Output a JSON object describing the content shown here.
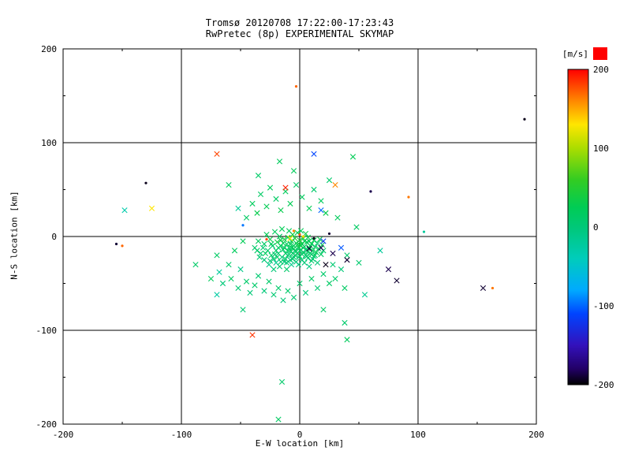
{
  "title": {
    "line1": "Tromsø 20120708 17:22:00-17:23:43",
    "line2": "RwPretec (8p) EXPERIMENTAL SKYMAP"
  },
  "axes": {
    "xlabel": "E-W location [km]",
    "ylabel": "N-S location [km]",
    "xlim": [
      -200,
      200
    ],
    "ylim": [
      -200,
      200
    ],
    "xticks": [
      -200,
      -100,
      0,
      100,
      200
    ],
    "yticks": [
      -200,
      -100,
      0,
      100,
      200
    ],
    "minor_tick_step": 50,
    "grid": true
  },
  "colorbar": {
    "label": "[m/s]",
    "ticks": [
      200,
      100,
      0,
      -100,
      -200
    ],
    "range": [
      -200,
      200
    ],
    "cap_color": "#ff0000",
    "stops": [
      [
        200,
        "#ff0000"
      ],
      [
        160,
        "#ff8800"
      ],
      [
        130,
        "#ffe600"
      ],
      [
        100,
        "#aadd00"
      ],
      [
        60,
        "#33cc22"
      ],
      [
        25,
        "#00cc55"
      ],
      [
        0,
        "#00c878"
      ],
      [
        -40,
        "#00ccbb"
      ],
      [
        -80,
        "#00aaff"
      ],
      [
        -110,
        "#0044ff"
      ],
      [
        -150,
        "#3311bb"
      ],
      [
        -180,
        "#220066"
      ],
      [
        -200,
        "#000000"
      ]
    ]
  },
  "chart_data": {
    "type": "scatter",
    "title": "Tromsø 20120708 17:22:00-17:23:43 — RwPretec (8p) EXPERIMENTAL SKYMAP",
    "xlabel": "E-W location [km]",
    "ylabel": "N-S location [km]",
    "xlim": [
      -200,
      200
    ],
    "ylim": [
      -200,
      200
    ],
    "color_label": "[m/s]",
    "color_range": [
      -200,
      200
    ],
    "legend_position": "right-colorbar",
    "marker_note": "points are [x_km, y_km, velocity_mps, optional 'd' for dot marker; default cross]",
    "points": [
      [
        -38,
        -12,
        10
      ],
      [
        -35,
        -5,
        20
      ],
      [
        -33,
        -18,
        5
      ],
      [
        -30,
        -8,
        15
      ],
      [
        -30,
        -25,
        0
      ],
      [
        -28,
        2,
        25
      ],
      [
        -27,
        -15,
        10
      ],
      [
        -26,
        -30,
        -10
      ],
      [
        -25,
        -3,
        30
      ],
      [
        -24,
        -20,
        15
      ],
      [
        -23,
        -10,
        5
      ],
      [
        -22,
        -35,
        0
      ],
      [
        -21,
        5,
        20
      ],
      [
        -20,
        -15,
        10
      ],
      [
        -20,
        -28,
        -15
      ],
      [
        -19,
        -6,
        35
      ],
      [
        -18,
        -18,
        10
      ],
      [
        -17,
        0,
        15
      ],
      [
        -17,
        -32,
        5
      ],
      [
        -16,
        -10,
        20
      ],
      [
        -15,
        -22,
        0
      ],
      [
        -15,
        8,
        25
      ],
      [
        -14,
        -14,
        10
      ],
      [
        -13,
        -3,
        40
      ],
      [
        -13,
        -27,
        -5
      ],
      [
        -12,
        -18,
        15
      ],
      [
        -11,
        -8,
        20
      ],
      [
        -11,
        -35,
        10
      ],
      [
        -10,
        -1,
        30
      ],
      [
        -10,
        -20,
        5
      ],
      [
        -9,
        -12,
        15
      ],
      [
        -9,
        6,
        20
      ],
      [
        -8,
        -25,
        0
      ],
      [
        -8,
        -15,
        10
      ],
      [
        -7,
        -5,
        25
      ],
      [
        -7,
        -30,
        -10
      ],
      [
        -6,
        -18,
        15
      ],
      [
        -6,
        2,
        35
      ],
      [
        -5,
        -10,
        20
      ],
      [
        -5,
        -22,
        5
      ],
      [
        -4,
        -2,
        45
      ],
      [
        -4,
        -15,
        10
      ],
      [
        -3,
        -27,
        0
      ],
      [
        -3,
        -7,
        25
      ],
      [
        -2,
        -18,
        15
      ],
      [
        -2,
        4,
        30
      ],
      [
        -1,
        -12,
        20
      ],
      [
        -1,
        -30,
        -5
      ],
      [
        0,
        -4,
        40
      ],
      [
        0,
        -21,
        10
      ],
      [
        1,
        -14,
        15
      ],
      [
        1,
        6,
        25
      ],
      [
        2,
        -8,
        30
      ],
      [
        2,
        -25,
        5
      ],
      [
        3,
        -17,
        10
      ],
      [
        3,
        -2,
        50
      ],
      [
        4,
        -11,
        20
      ],
      [
        4,
        -28,
        0
      ],
      [
        5,
        -20,
        15
      ],
      [
        5,
        3,
        35
      ],
      [
        6,
        -6,
        25
      ],
      [
        6,
        -15,
        10
      ],
      [
        7,
        -23,
        5
      ],
      [
        7,
        -1,
        30
      ],
      [
        8,
        -12,
        20
      ],
      [
        8,
        -32,
        -5
      ],
      [
        9,
        -18,
        15
      ],
      [
        10,
        -8,
        25
      ],
      [
        10,
        -26,
        10
      ],
      [
        11,
        -15,
        20
      ],
      [
        12,
        -4,
        30
      ],
      [
        12,
        -21,
        5
      ],
      [
        13,
        -11,
        15
      ],
      [
        14,
        -17,
        25
      ],
      [
        15,
        -7,
        10
      ],
      [
        15,
        -28,
        0
      ],
      [
        16,
        -13,
        20
      ],
      [
        17,
        -3,
        30
      ],
      [
        18,
        -19,
        15
      ],
      [
        19,
        -9,
        25
      ],
      [
        20,
        -15,
        10
      ],
      [
        -36,
        -15,
        12
      ],
      [
        -31,
        -12,
        8
      ],
      [
        -29,
        -18,
        18
      ],
      [
        -24,
        -8,
        22
      ],
      [
        -22,
        -24,
        6
      ],
      [
        -19,
        -22,
        14
      ],
      [
        -16,
        -27,
        8
      ],
      [
        -14,
        -7,
        28
      ],
      [
        -12,
        -24,
        12
      ],
      [
        -10,
        -15,
        18
      ],
      [
        -8,
        -8,
        24
      ],
      [
        -6,
        -24,
        8
      ],
      [
        -4,
        -20,
        14
      ],
      [
        -2,
        -9,
        32
      ],
      [
        0,
        -15,
        18
      ],
      [
        2,
        -19,
        12
      ],
      [
        4,
        -5,
        28
      ],
      [
        6,
        -21,
        8
      ],
      [
        8,
        -5,
        22
      ],
      [
        10,
        -19,
        14
      ],
      [
        -13,
        -12,
        22
      ],
      [
        -9,
        -19,
        9
      ],
      [
        -5,
        -13,
        26
      ],
      [
        -1,
        -22,
        11
      ],
      [
        3,
        -12,
        19
      ],
      [
        7,
        -16,
        16
      ],
      [
        -18,
        -12,
        17
      ],
      [
        -21,
        -19,
        7
      ],
      [
        -25,
        -26,
        3
      ],
      [
        -7,
        -12,
        21
      ],
      [
        -3,
        -16,
        13
      ],
      [
        1,
        -10,
        27
      ],
      [
        5,
        -14,
        9
      ],
      [
        9,
        -10,
        23
      ],
      [
        11,
        -24,
        7
      ],
      [
        13,
        -20,
        16
      ],
      [
        -34,
        -22,
        4
      ],
      [
        -16,
        -4,
        31
      ],
      [
        -11,
        -28,
        6
      ],
      [
        0,
        -9,
        36
      ],
      [
        -68,
        -38,
        -20
      ],
      [
        -65,
        -50,
        0
      ],
      [
        -60,
        -30,
        10
      ],
      [
        -58,
        -45,
        15
      ],
      [
        -55,
        -15,
        20
      ],
      [
        -52,
        -55,
        5
      ],
      [
        -50,
        -35,
        -10
      ],
      [
        -48,
        -5,
        25
      ],
      [
        -45,
        -48,
        10
      ],
      [
        -45,
        20,
        15
      ],
      [
        -42,
        -60,
        0
      ],
      [
        -40,
        35,
        20
      ],
      [
        -38,
        -52,
        10
      ],
      [
        -36,
        25,
        30
      ],
      [
        -35,
        -42,
        5
      ],
      [
        -33,
        45,
        15
      ],
      [
        -30,
        -58,
        0
      ],
      [
        -28,
        32,
        25
      ],
      [
        -26,
        -48,
        10
      ],
      [
        -25,
        52,
        20
      ],
      [
        -22,
        -62,
        5
      ],
      [
        -20,
        40,
        15
      ],
      [
        -18,
        -55,
        10
      ],
      [
        -16,
        28,
        30
      ],
      [
        -14,
        -68,
        0
      ],
      [
        -12,
        48,
        20
      ],
      [
        -10,
        -58,
        10
      ],
      [
        -8,
        35,
        25
      ],
      [
        -5,
        -65,
        5
      ],
      [
        -3,
        55,
        15
      ],
      [
        0,
        -50,
        10
      ],
      [
        2,
        42,
        20
      ],
      [
        5,
        -60,
        0
      ],
      [
        8,
        30,
        25
      ],
      [
        10,
        -45,
        15
      ],
      [
        12,
        50,
        10
      ],
      [
        15,
        -55,
        5
      ],
      [
        18,
        38,
        20
      ],
      [
        20,
        -40,
        10
      ],
      [
        22,
        25,
        30
      ],
      [
        25,
        -50,
        15
      ],
      [
        28,
        -30,
        5
      ],
      [
        30,
        -45,
        10
      ],
      [
        32,
        20,
        20
      ],
      [
        35,
        -35,
        0
      ],
      [
        38,
        -55,
        15
      ],
      [
        40,
        -20,
        10
      ],
      [
        -75,
        -45,
        20
      ],
      [
        -70,
        -20,
        15
      ],
      [
        25,
        60,
        10
      ],
      [
        -148,
        28,
        -30
      ],
      [
        105,
        5,
        -20,
        "d"
      ],
      [
        40,
        -110,
        20
      ],
      [
        -15,
        -155,
        10
      ],
      [
        -18,
        -195,
        15
      ],
      [
        45,
        85,
        25
      ],
      [
        -17,
        80,
        20
      ],
      [
        -70,
        -62,
        -25
      ],
      [
        38,
        -92,
        10
      ],
      [
        20,
        -78,
        15
      ],
      [
        -48,
        -78,
        5
      ],
      [
        -60,
        55,
        18
      ],
      [
        55,
        -62,
        -15
      ],
      [
        -88,
        -30,
        12
      ],
      [
        68,
        -15,
        -20
      ],
      [
        50,
        -28,
        8
      ],
      [
        -52,
        30,
        -18
      ],
      [
        48,
        10,
        15
      ],
      [
        -5,
        70,
        22
      ],
      [
        -35,
        65,
        12
      ],
      [
        8,
        -13,
        -190
      ],
      [
        18,
        -12,
        -185
      ],
      [
        22,
        -30,
        -195
      ],
      [
        40,
        -25,
        -190
      ],
      [
        75,
        -35,
        -185
      ],
      [
        82,
        -47,
        -190
      ],
      [
        155,
        -55,
        -190
      ],
      [
        -130,
        57,
        -195,
        "d"
      ],
      [
        190,
        125,
        -195,
        "d"
      ],
      [
        60,
        48,
        -185,
        "d"
      ],
      [
        -155,
        -8,
        -190,
        "d"
      ],
      [
        12,
        -2,
        -195,
        "d"
      ],
      [
        25,
        3,
        -190,
        "d"
      ],
      [
        28,
        -18,
        -185
      ],
      [
        -3,
        160,
        170,
        "d"
      ],
      [
        -70,
        88,
        180
      ],
      [
        -40,
        -105,
        185
      ],
      [
        -12,
        52,
        190
      ],
      [
        30,
        55,
        160
      ],
      [
        0,
        2,
        175,
        "d"
      ],
      [
        -5,
        6,
        160,
        "d"
      ],
      [
        163,
        -55,
        165,
        "d"
      ],
      [
        -28,
        -3,
        180,
        "d"
      ],
      [
        92,
        42,
        165,
        "d"
      ],
      [
        -150,
        -10,
        170,
        "d"
      ],
      [
        12,
        88,
        -110
      ],
      [
        18,
        28,
        -100
      ],
      [
        -48,
        12,
        -95,
        "d"
      ],
      [
        35,
        -12,
        -105
      ],
      [
        20,
        -5,
        -120
      ],
      [
        -125,
        30,
        130
      ],
      [
        -8,
        -2,
        125
      ],
      [
        3,
        0,
        135,
        "d"
      ]
    ]
  }
}
